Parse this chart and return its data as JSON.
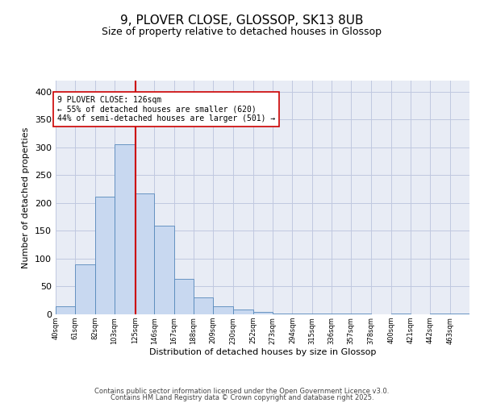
{
  "title_line1": "9, PLOVER CLOSE, GLOSSOP, SK13 8UB",
  "title_line2": "Size of property relative to detached houses in Glossop",
  "xlabel": "Distribution of detached houses by size in Glossop",
  "ylabel": "Number of detached properties",
  "bin_labels": [
    "40sqm",
    "61sqm",
    "82sqm",
    "103sqm",
    "125sqm",
    "146sqm",
    "167sqm",
    "188sqm",
    "209sqm",
    "230sqm",
    "252sqm",
    "273sqm",
    "294sqm",
    "315sqm",
    "336sqm",
    "357sqm",
    "378sqm",
    "400sqm",
    "421sqm",
    "442sqm",
    "463sqm"
  ],
  "bin_edges": [
    40,
    61,
    82,
    103,
    125,
    146,
    167,
    188,
    209,
    230,
    252,
    273,
    294,
    315,
    336,
    357,
    378,
    400,
    421,
    442,
    463,
    484
  ],
  "bar_values": [
    14,
    90,
    212,
    305,
    217,
    159,
    64,
    30,
    15,
    8,
    5,
    2,
    1,
    1,
    1,
    1,
    0,
    2,
    0,
    1,
    1
  ],
  "bar_color": "#c8d8f0",
  "bar_edge_color": "#5588bb",
  "grid_color": "#c0c8e0",
  "background_color": "#e8ecf5",
  "property_value": 126,
  "vline_color": "#cc0000",
  "annotation_text": "9 PLOVER CLOSE: 126sqm\n← 55% of detached houses are smaller (620)\n44% of semi-detached houses are larger (501) →",
  "annotation_box_facecolor": "#ffffff",
  "annotation_box_edgecolor": "#cc0000",
  "footnote_line1": "Contains HM Land Registry data © Crown copyright and database right 2025.",
  "footnote_line2": "Contains public sector information licensed under the Open Government Licence v3.0.",
  "ylim": [
    0,
    420
  ],
  "yticks": [
    0,
    50,
    100,
    150,
    200,
    250,
    300,
    350,
    400
  ],
  "title_fontsize": 11,
  "subtitle_fontsize": 9,
  "ylabel_fontsize": 8,
  "xlabel_fontsize": 8,
  "ytick_fontsize": 8,
  "xtick_fontsize": 6,
  "annot_fontsize": 7,
  "footnote_fontsize": 6
}
